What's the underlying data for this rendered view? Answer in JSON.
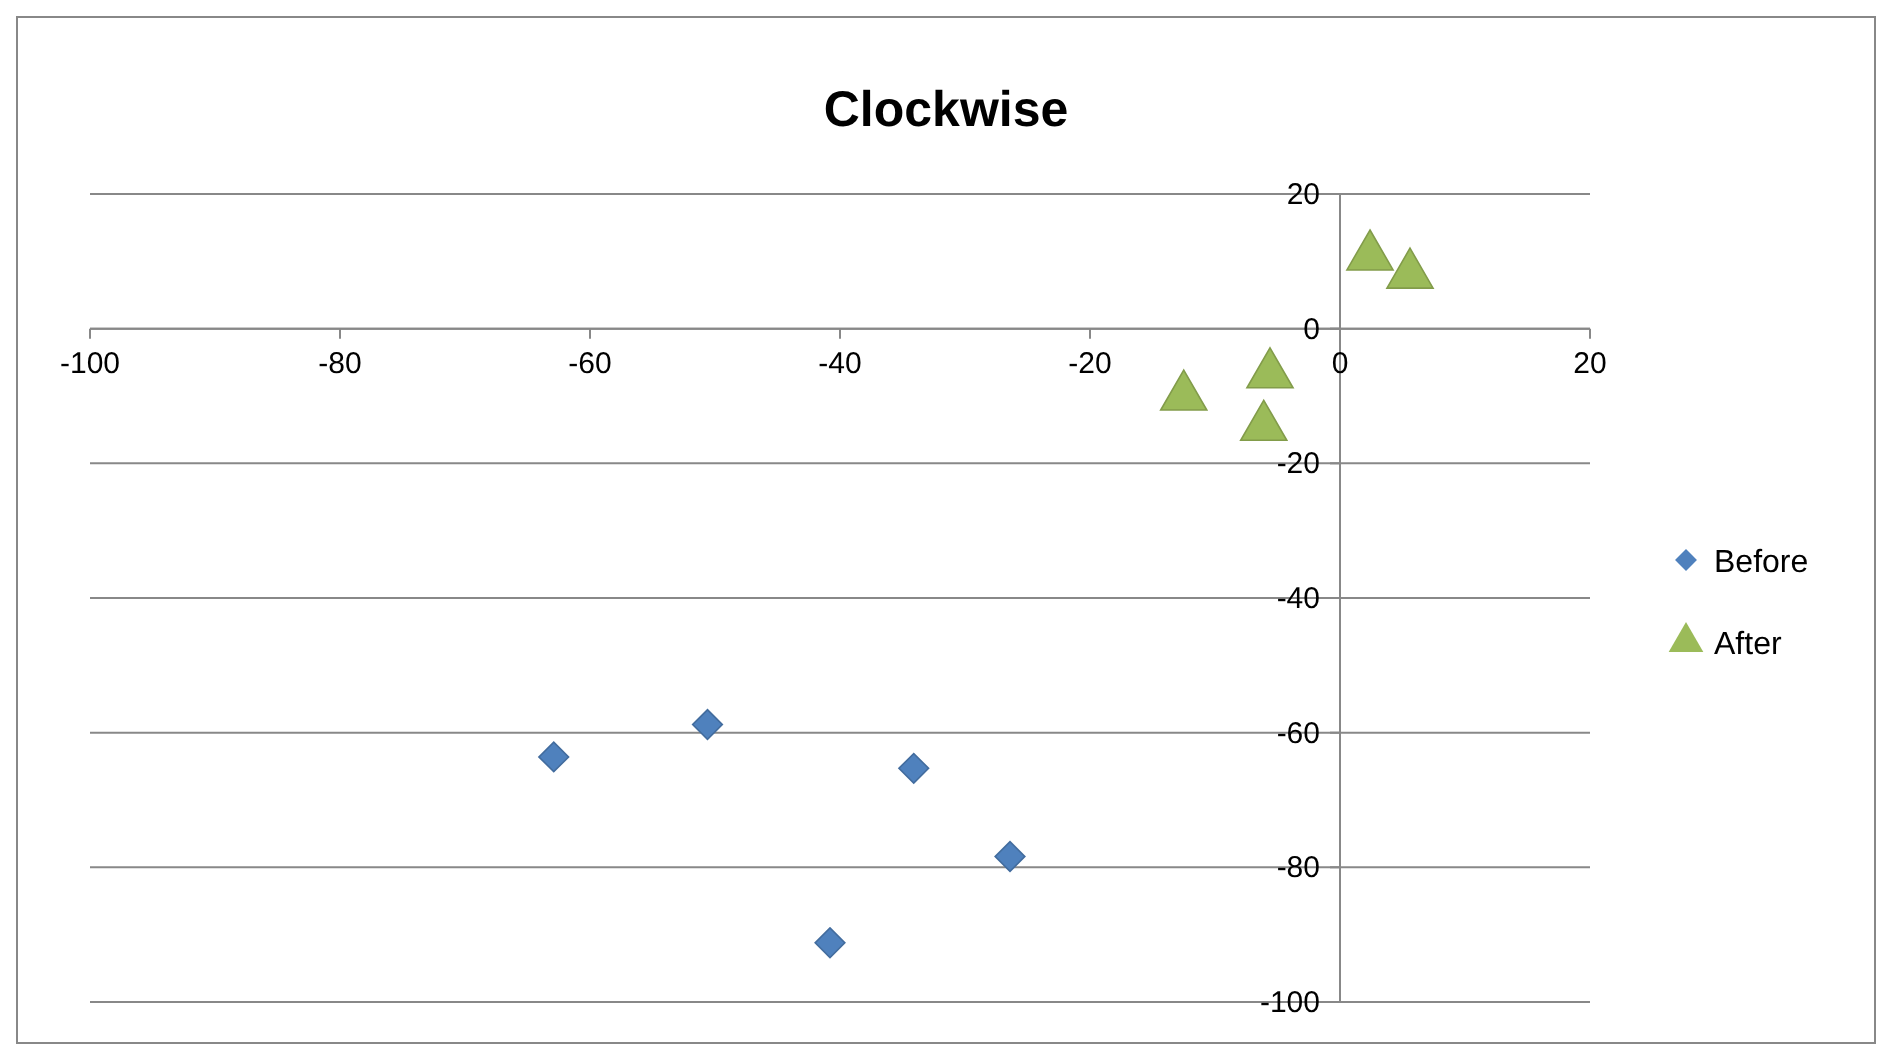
{
  "chart_data": {
    "type": "scatter",
    "title": "Clockwise",
    "series": [
      {
        "name": "Before",
        "color": "#4f81bd",
        "marker": "diamond",
        "x": [
          -62.9,
          -50.6,
          -34.1,
          -26.4,
          -40.8
        ],
        "values": [
          -63.6,
          -58.8,
          -65.3,
          -78.4,
          -91.2
        ]
      },
      {
        "name": "After",
        "color": "#9bbb59",
        "marker": "triangle",
        "x": [
          -12.5,
          -5.6,
          -6.1,
          2.4,
          5.6
        ],
        "values": [
          -10.1,
          -6.8,
          -14.6,
          10.7,
          8.0
        ]
      }
    ],
    "xlim": [
      -100,
      20
    ],
    "xticks": [
      -100,
      -80,
      -60,
      -40,
      -20,
      0,
      20
    ],
    "ylim": [
      -100,
      20
    ],
    "yticks": [
      -100,
      -80,
      -60,
      -40,
      -20,
      0,
      20
    ],
    "grid": "y",
    "legend": "right"
  }
}
